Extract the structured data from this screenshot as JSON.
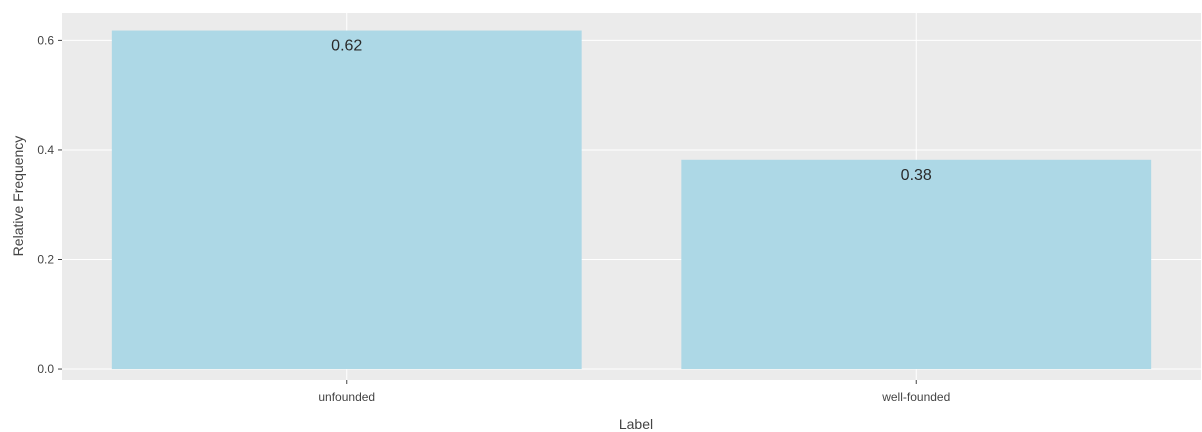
{
  "chart_data": {
    "type": "bar",
    "categories": [
      "unfounded",
      "well-founded"
    ],
    "values": [
      0.618,
      0.382
    ],
    "data_labels": [
      "0.62",
      "0.38"
    ],
    "title": "",
    "xlabel": "Label",
    "ylabel": "Relative Frequency",
    "ylim": [
      -0.02,
      0.65
    ],
    "yticks": [
      0.0,
      0.2,
      0.4,
      0.6
    ],
    "ytick_labels": [
      "0.0",
      "0.2",
      "0.4",
      "0.6"
    ],
    "grid": true,
    "legend": "none",
    "colors": {
      "bar": "#add8e6",
      "plot_background": "#ebebeb",
      "grid": "#ffffff",
      "text": "#444444"
    }
  }
}
